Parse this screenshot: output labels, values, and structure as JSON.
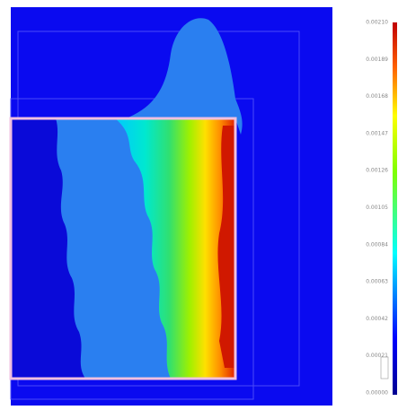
{
  "colorbar": {
    "ticks": [
      "0.00210",
      "0.00189",
      "0.00168",
      "0.00147",
      "0.00126",
      "0.00105",
      "0.00084",
      "0.00063",
      "0.00042",
      "0.00021",
      "0.00000"
    ]
  }
}
